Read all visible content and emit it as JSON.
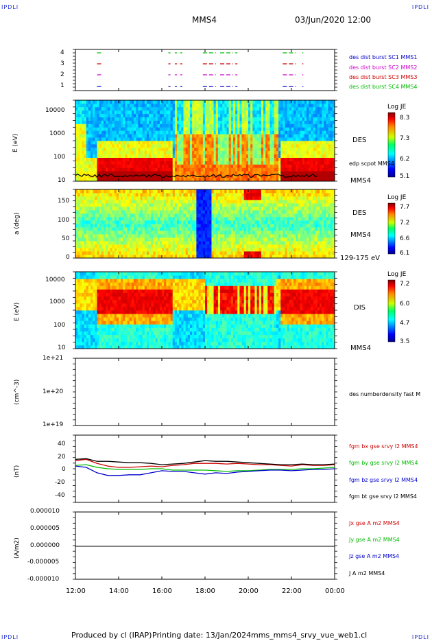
{
  "corner_labels": {
    "tl": "IPDLI",
    "tr": "IPDLI",
    "bl": "IPDLI",
    "br": "IPDLI"
  },
  "header": {
    "spacecraft": "MMS4",
    "datetime": "03/Jun/2020 12:00"
  },
  "footer": {
    "produced": "Produced by cl (IRAP)",
    "printing_date": "Printing date: 13/Jan/2024",
    "file": "mms_mms4_srvy_vue_web1.cl"
  },
  "colors": {
    "mms1": "#0000cc",
    "mms2": "#cc00cc",
    "mms3": "#cc0000",
    "mms4": "#00bb00",
    "bx": "#cc0000",
    "by": "#00bb00",
    "bz": "#0000cc",
    "bt": "#000000"
  },
  "chart_data": [
    {
      "type": "line",
      "panel": "burst",
      "y_ticks": [
        "4",
        "3",
        "2",
        "1"
      ],
      "legend": [
        "des dist burst SC1 MMS1",
        "des dist burst SC2 MMS2",
        "des dist burst SC3 MMS3",
        "des dist burst SC4 MMS4"
      ],
      "intervals_hours": [
        [
          13.0,
          13.2
        ],
        [
          16.3,
          16.4
        ],
        [
          16.6,
          16.7
        ],
        [
          16.85,
          16.95
        ],
        [
          17.9,
          18.5
        ],
        [
          18.7,
          19.3
        ],
        [
          19.4,
          19.5
        ],
        [
          21.6,
          22.2
        ],
        [
          22.5,
          22.55
        ]
      ]
    },
    {
      "type": "heatmap",
      "panel": "des-energy",
      "ylabel": "E (eV)",
      "y_ticks": [
        "10000",
        "1000",
        "100",
        "10"
      ],
      "instrument": "DES",
      "overlay": "edp scpot MMS4",
      "spacecraft": "MMS4",
      "colorbar": {
        "title": "Log JE",
        "ticks": [
          "8.3",
          "7.3",
          "6.2",
          "5.1"
        ]
      }
    },
    {
      "type": "heatmap",
      "panel": "des-pitch",
      "ylabel": "a (deg)",
      "y_ticks": [
        "150",
        "100",
        "50",
        "0"
      ],
      "instrument": "DES",
      "spacecraft": "MMS4",
      "energy_range": "129-175 eV",
      "colorbar": {
        "title": "Log JE",
        "ticks": [
          "7.7",
          "7.2",
          "6.6",
          "6.1"
        ]
      }
    },
    {
      "type": "heatmap",
      "panel": "dis-energy",
      "ylabel": "E (eV)",
      "y_ticks": [
        "10000",
        "1000",
        "100",
        "10"
      ],
      "instrument": "DIS",
      "spacecraft": "MMS4",
      "colorbar": {
        "title": "Log JE",
        "ticks": [
          "7.2",
          "6.0",
          "4.7",
          "3.5"
        ]
      }
    },
    {
      "type": "line",
      "panel": "density",
      "ylabel": "(cm^-3)",
      "y_ticks": [
        "1e+21",
        "1e+20",
        "1e+19"
      ],
      "legend": [
        "des numberdensity fast M"
      ],
      "series": []
    },
    {
      "type": "line",
      "panel": "fgm",
      "ylabel": "(nT)",
      "y_ticks": [
        "40",
        "20",
        "0",
        "-20",
        "-40"
      ],
      "ylim": [
        -50,
        50
      ],
      "x_hours": [
        12.0,
        12.5,
        13.0,
        13.5,
        14.0,
        14.5,
        15.0,
        15.5,
        16.0,
        16.5,
        17.0,
        17.5,
        18.0,
        18.5,
        19.0,
        19.5,
        20.0,
        20.5,
        21.0,
        21.5,
        22.0,
        22.5,
        23.0,
        23.5,
        24.0
      ],
      "series": [
        {
          "name": "fgm bx gse srvy l2 MMS4",
          "values": [
            12,
            14,
            8,
            4,
            2,
            2,
            3,
            4,
            3,
            5,
            6,
            8,
            8,
            8,
            7,
            8,
            7,
            6,
            6,
            5,
            4,
            6,
            5,
            5,
            6
          ]
        },
        {
          "name": "fgm by gse srvy l2 MMS4",
          "values": [
            5,
            6,
            2,
            0,
            -1,
            -1,
            -1,
            0,
            0,
            -2,
            -2,
            -2,
            -2,
            -3,
            -4,
            -3,
            -3,
            -2,
            -1,
            -1,
            -1,
            0,
            0,
            1,
            2
          ]
        },
        {
          "name": "fgm bz gse srvy l2 MMS4",
          "values": [
            4,
            2,
            -6,
            -10,
            -10,
            -9,
            -9,
            -6,
            -3,
            -4,
            -4,
            -6,
            -8,
            -6,
            -7,
            -5,
            -4,
            -3,
            -2,
            -2,
            -3,
            -2,
            -1,
            -1,
            0
          ]
        },
        {
          "name": "fgm bt gse srvy l2 MMS4",
          "values": [
            14,
            15,
            11,
            11,
            10,
            9,
            9,
            8,
            6,
            7,
            8,
            10,
            12,
            11,
            11,
            10,
            9,
            8,
            7,
            6,
            6,
            7,
            6,
            6,
            7
          ]
        }
      ]
    },
    {
      "type": "line",
      "panel": "current",
      "ylabel": "(A/m2)",
      "y_ticks": [
        "0.000010",
        "0.000005",
        "0.000000",
        "-0.000005",
        "-0.000010"
      ],
      "ylim": [
        -1e-05,
        1e-05
      ],
      "series": [
        {
          "name": "Jx gse A m2 MMS4",
          "values": [
            0,
            0
          ]
        },
        {
          "name": "Jy gse A m2 MMS4",
          "values": [
            0,
            0
          ]
        },
        {
          "name": "Jz gse A m2 MMS4",
          "values": [
            0,
            0
          ]
        },
        {
          "name": "J A m2 MMS4",
          "values": [
            0,
            0
          ]
        }
      ]
    }
  ],
  "x_axis": {
    "ticks": [
      "12:00",
      "14:00",
      "16:00",
      "18:00",
      "20:00",
      "22:00",
      "00:00"
    ],
    "range_hours": [
      12,
      24
    ]
  }
}
